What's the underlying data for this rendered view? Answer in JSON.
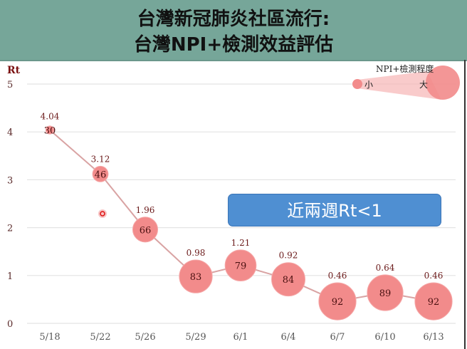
{
  "header": {
    "title_line1": "台灣新冠肺炎社區流行:",
    "title_line2": "台灣NPI+檢測效益評估"
  },
  "legend": {
    "title": "NPI+檢測程度",
    "small_label": "小",
    "large_label": "大"
  },
  "callout": {
    "text": "近兩週Rt<1"
  },
  "axis": {
    "y_label": "Rt",
    "y_ticks": [
      "0",
      "1",
      "2",
      "3",
      "4",
      "5"
    ]
  },
  "colors": {
    "bubble": "#f28b8b",
    "line": "#d8a0a0",
    "value_text": "#6b1a1a",
    "header_bg": "#76a699",
    "callout_bg": "#4f8fd2"
  },
  "chart_data": {
    "type": "scatter",
    "title": "台灣新冠肺炎社區流行: 台灣NPI+檢測效益評估",
    "xlabel": "",
    "ylabel": "Rt",
    "ylim": [
      0,
      5
    ],
    "grid": true,
    "legend_position": "top-right",
    "categories": [
      "5/18",
      "5/22",
      "5/26",
      "5/29",
      "6/1",
      "6/4",
      "6/7",
      "6/10",
      "6/13"
    ],
    "series": [
      {
        "name": "Rt",
        "values": [
          4.04,
          3.12,
          1.96,
          0.98,
          1.21,
          0.92,
          0.46,
          0.64,
          0.46
        ]
      },
      {
        "name": "NPI+檢測程度",
        "values": [
          30,
          46,
          66,
          83,
          79,
          84,
          92,
          89,
          92
        ]
      }
    ],
    "annotations": [
      "近兩週Rt<1"
    ]
  },
  "points": [
    {
      "date": "5/18",
      "rt": "4.04",
      "npi": "30"
    },
    {
      "date": "5/22",
      "rt": "3.12",
      "npi": "46"
    },
    {
      "date": "5/26",
      "rt": "1.96",
      "npi": "66"
    },
    {
      "date": "5/29",
      "rt": "0.98",
      "npi": "83"
    },
    {
      "date": "6/1",
      "rt": "1.21",
      "npi": "79"
    },
    {
      "date": "6/4",
      "rt": "0.92",
      "npi": "84"
    },
    {
      "date": "6/7",
      "rt": "0.46",
      "npi": "92"
    },
    {
      "date": "6/10",
      "rt": "0.64",
      "npi": "89"
    },
    {
      "date": "6/13",
      "rt": "0.46",
      "npi": "92"
    }
  ]
}
